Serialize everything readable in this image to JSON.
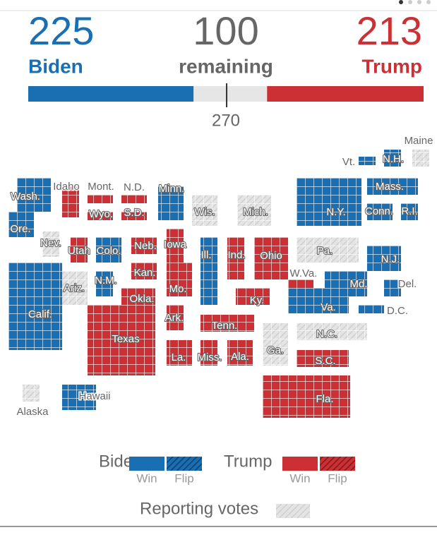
{
  "header": {
    "biden": {
      "count": 225,
      "label": "Biden"
    },
    "remaining": {
      "count": 100,
      "label": "remaining"
    },
    "trump": {
      "count": 213,
      "label": "Trump"
    },
    "threshold": 270
  },
  "states": [
    {
      "label": "Wash.",
      "status": "biden"
    },
    {
      "label": "Idaho",
      "status": "trump"
    },
    {
      "label": "Mont.",
      "status": "trump"
    },
    {
      "label": "N.D.",
      "status": "trump"
    },
    {
      "label": "Minn.",
      "status": "biden"
    },
    {
      "label": "Wis.",
      "status": "reporting"
    },
    {
      "label": "Mich.",
      "status": "reporting"
    },
    {
      "label": "Ore.",
      "status": "biden"
    },
    {
      "label": "Wyo.",
      "status": "trump"
    },
    {
      "label": "S.D.",
      "status": "trump"
    },
    {
      "label": "Nev.",
      "status": "reporting"
    },
    {
      "label": "Utah",
      "status": "trump"
    },
    {
      "label": "Colo.",
      "status": "biden"
    },
    {
      "label": "Neb.",
      "status": "trump"
    },
    {
      "label": "Iowa",
      "status": "trump"
    },
    {
      "label": "Ill.",
      "status": "biden"
    },
    {
      "label": "Ind.",
      "status": "trump"
    },
    {
      "label": "Ohio",
      "status": "trump"
    },
    {
      "label": "Pa.",
      "status": "reporting"
    },
    {
      "label": "N.J.",
      "status": "biden"
    },
    {
      "label": "Vt.",
      "status": "biden"
    },
    {
      "label": "Maine",
      "status": "reporting"
    },
    {
      "label": "N.H.",
      "status": "biden"
    },
    {
      "label": "Mass.",
      "status": "biden"
    },
    {
      "label": "N.Y.",
      "status": "biden"
    },
    {
      "label": "Conn.",
      "status": "biden"
    },
    {
      "label": "R.I.",
      "status": "biden"
    },
    {
      "label": "Ariz.",
      "status": "reporting"
    },
    {
      "label": "N.M.",
      "status": "biden"
    },
    {
      "label": "Kan.",
      "status": "trump"
    },
    {
      "label": "Okla.",
      "status": "trump"
    },
    {
      "label": "Mo.",
      "status": "trump"
    },
    {
      "label": "Ky.",
      "status": "trump"
    },
    {
      "label": "W.Va.",
      "status": "trump"
    },
    {
      "label": "Md.",
      "status": "biden"
    },
    {
      "label": "Del.",
      "status": "biden"
    },
    {
      "label": "Va.",
      "status": "biden"
    },
    {
      "label": "D.C.",
      "status": "biden"
    },
    {
      "label": "Calif.",
      "status": "biden"
    },
    {
      "label": "Ark.",
      "status": "trump"
    },
    {
      "label": "Tenn.",
      "status": "trump"
    },
    {
      "label": "N.C.",
      "status": "reporting"
    },
    {
      "label": "Texas",
      "status": "trump"
    },
    {
      "label": "La.",
      "status": "trump"
    },
    {
      "label": "Miss.",
      "status": "trump"
    },
    {
      "label": "Ala.",
      "status": "trump"
    },
    {
      "label": "Ga.",
      "status": "reporting"
    },
    {
      "label": "S.C.",
      "status": "trump"
    },
    {
      "label": "Fla.",
      "status": "trump"
    },
    {
      "label": "Alaska",
      "status": "reporting"
    },
    {
      "label": "Hawaii",
      "status": "biden"
    }
  ],
  "legend": {
    "biden": "Biden",
    "trump": "Trump",
    "win": "Win",
    "flip": "Flip",
    "reporting": "Reporting votes"
  }
}
